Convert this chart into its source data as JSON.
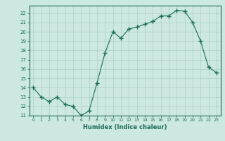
{
  "x": [
    0,
    1,
    2,
    3,
    4,
    5,
    6,
    7,
    8,
    9,
    10,
    11,
    12,
    13,
    14,
    15,
    16,
    17,
    18,
    19,
    20,
    21,
    22,
    23
  ],
  "y": [
    14.0,
    13.0,
    12.5,
    13.0,
    12.2,
    12.0,
    11.0,
    11.5,
    14.5,
    17.7,
    20.0,
    19.3,
    20.3,
    20.5,
    20.8,
    21.1,
    21.7,
    21.7,
    22.3,
    22.2,
    21.0,
    19.0,
    16.2,
    15.6
  ],
  "xlim": [
    -0.5,
    23.5
  ],
  "ylim": [
    11,
    22.8
  ],
  "yticks": [
    11,
    12,
    13,
    14,
    15,
    16,
    17,
    18,
    19,
    20,
    21,
    22
  ],
  "xticks": [
    0,
    1,
    2,
    3,
    4,
    5,
    6,
    7,
    8,
    9,
    10,
    11,
    12,
    13,
    14,
    15,
    16,
    17,
    18,
    19,
    20,
    21,
    22,
    23
  ],
  "xlabel": "Humidex (Indice chaleur)",
  "line_color": "#1a6b5a",
  "marker": "+",
  "bg_color": "#cce8e0",
  "grid_color": "#aacfc7",
  "tick_color": "#1a6b5a",
  "label_color": "#1a6b5a",
  "spine_color": "#1a6b5a"
}
